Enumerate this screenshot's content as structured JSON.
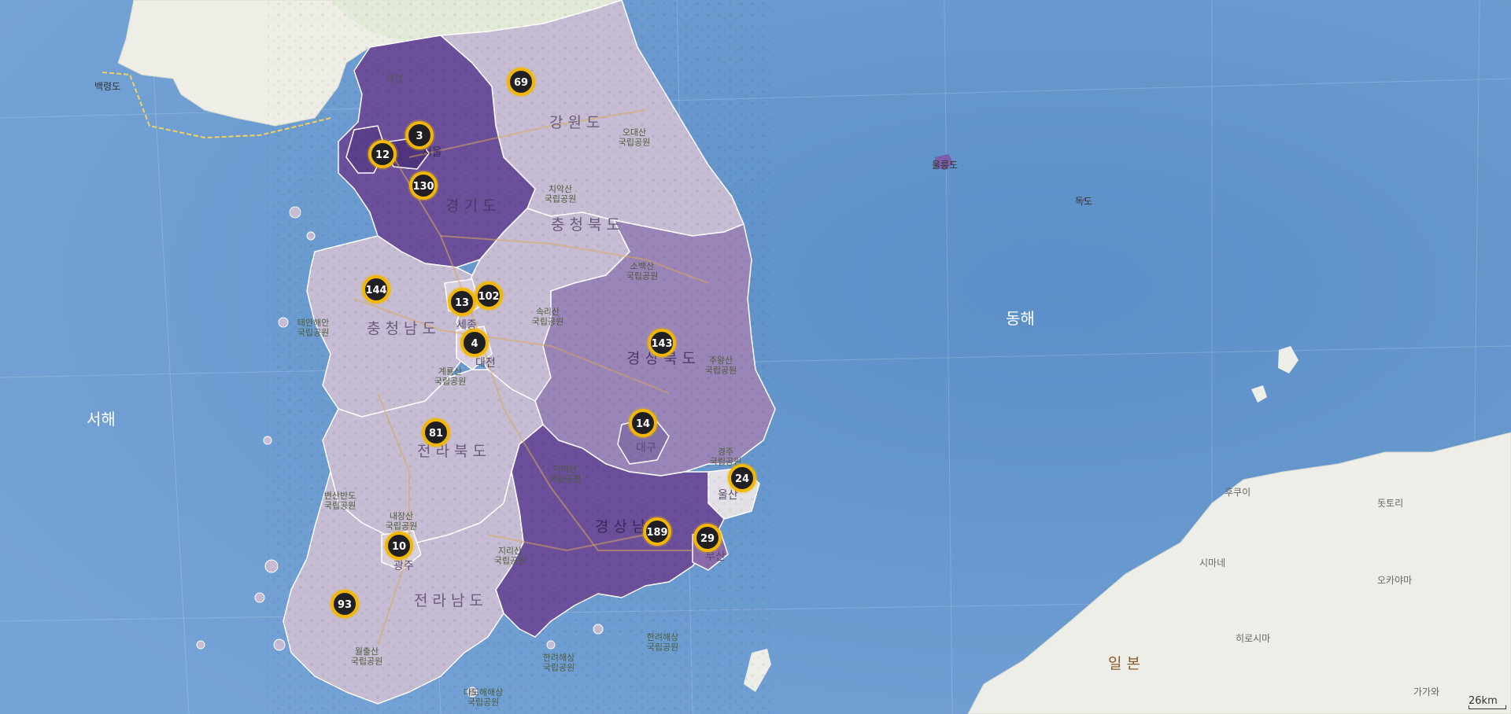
{
  "colors": {
    "sea": "#5e92c9",
    "land_foreign": "#eeeee8",
    "region_light": "#c8bed2",
    "region_mid": "#9a86b8",
    "region_dark": "#6b4f99",
    "cluster_fill": "#1f1f24",
    "cluster_ring": "#f2b705"
  },
  "labels": {
    "gangwon": "강 원 도",
    "gyeonggi": "경 기 도",
    "chungbuk": "충 청 북 도",
    "chungnam": "충 청 남 도",
    "gyeongbuk": "경 상 북 도",
    "jeonbuk": "전 라 북 도",
    "gyeongnam": "경 상 남 도",
    "jeonnam": "전 라 남 도",
    "daegu": "대구",
    "ulsan": "울산",
    "busan": "부산",
    "gwangju": "광주",
    "daejeon": "대전",
    "sejong": "세종",
    "seoul": "서울",
    "gaeseong": "개성",
    "baengnyeong": "백령도",
    "ulleung": "울릉도",
    "dokdo": "독도",
    "east_sea": "동해",
    "west_sea": "서해",
    "japan": "일 본",
    "odaesan": "오대산\n국립공원",
    "chiaksan": "치악산\n국립공원",
    "sobaeksan": "소백산\n국립공원",
    "songnisan": "속리산\n국립공원",
    "juwangsan": "주왕산\n국립공원",
    "taean": "태안해안\n국립공원",
    "gyeryongsan": "계룡산\n국립공원",
    "byeonsan": "변산반도\n국립공원",
    "gayasan": "가야산\n국립공원",
    "gyeongju": "경주\n국립공원",
    "jirisan": "지리산\n국립공원",
    "hallyeo1": "한려해상\n국립공원",
    "hallyeo2": "한려해상\n국립공원",
    "dadohae": "다도해해상\n국립공원",
    "wolchulsan": "월출산\n국립공원",
    "naejangsan": "내장산\n국립공원",
    "hugui": "후쿠이",
    "dottori": "돗토리",
    "shimane": "시마네",
    "okayama": "오카야마",
    "hiroshima": "히로시마",
    "kagawa": "가가와"
  },
  "clusters": [
    {
      "id": "c69",
      "count": "69"
    },
    {
      "id": "c3",
      "count": "3"
    },
    {
      "id": "c12",
      "count": "12"
    },
    {
      "id": "c130",
      "count": "130"
    },
    {
      "id": "c144",
      "count": "144"
    },
    {
      "id": "c13",
      "count": "13"
    },
    {
      "id": "c102",
      "count": "102"
    },
    {
      "id": "c4",
      "count": "4"
    },
    {
      "id": "c143",
      "count": "143"
    },
    {
      "id": "c81",
      "count": "81"
    },
    {
      "id": "c14",
      "count": "14"
    },
    {
      "id": "c24",
      "count": "24"
    },
    {
      "id": "c189",
      "count": "189"
    },
    {
      "id": "c29",
      "count": "29"
    },
    {
      "id": "c10",
      "count": "10"
    },
    {
      "id": "c93",
      "count": "93"
    }
  ],
  "scale": {
    "label": "26km"
  }
}
